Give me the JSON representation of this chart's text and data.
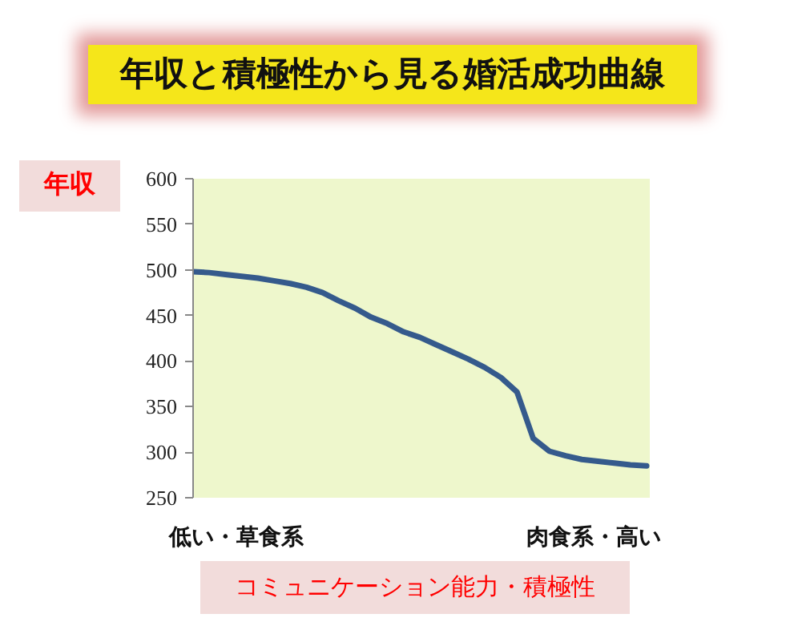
{
  "chart_data": {
    "type": "line",
    "title": "年収と積極性から見る婚活成功曲線",
    "ylabel": "年収",
    "xlabel": "コミュニケーション能力・積極性",
    "annotations": [
      "低い・草食系",
      "肉食系・高い"
    ],
    "categories": [
      null,
      null,
      null,
      null,
      null,
      null,
      null,
      null,
      null,
      null,
      null,
      null,
      null,
      null,
      null,
      null,
      null,
      null,
      null,
      null,
      null,
      null,
      null,
      null,
      null,
      null,
      null,
      null,
      null
    ],
    "series": [
      {
        "color": "#355a8c",
        "values": [
          498,
          497,
          495,
          493,
          491,
          488,
          485,
          481,
          475,
          466,
          458,
          448,
          441,
          432,
          426,
          418,
          410,
          402,
          393,
          382,
          366,
          315,
          301,
          296,
          292,
          290,
          288,
          286,
          285
        ]
      }
    ],
    "ylim": [
      250,
      600
    ],
    "yticks": [
      250,
      300,
      350,
      400,
      450,
      500,
      550,
      600
    ],
    "grid": false
  }
}
